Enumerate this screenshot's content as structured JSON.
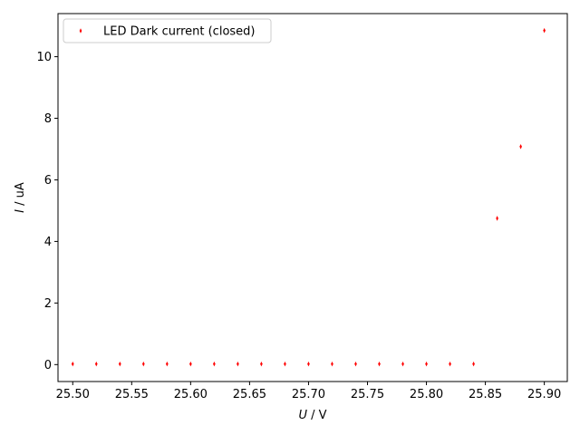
{
  "chart_data": {
    "type": "scatter",
    "series": [
      {
        "name": "LED Dark current (closed)",
        "color": "#ff0000",
        "marker": "thin-diamond",
        "x": [
          25.5,
          25.52,
          25.54,
          25.56,
          25.58,
          25.6,
          25.62,
          25.64,
          25.66,
          25.68,
          25.7,
          25.72,
          25.74,
          25.76,
          25.78,
          25.8,
          25.82,
          25.84,
          25.86,
          25.88,
          25.9
        ],
        "y": [
          0.02,
          0.02,
          0.02,
          0.02,
          0.02,
          0.02,
          0.02,
          0.02,
          0.02,
          0.02,
          0.02,
          0.02,
          0.02,
          0.02,
          0.02,
          0.02,
          0.02,
          0.02,
          4.75,
          7.08,
          10.85
        ]
      }
    ],
    "xlabel": {
      "var": "U",
      "unit": " / V"
    },
    "ylabel": {
      "var": "I",
      "unit": " / uA"
    },
    "xlim": [
      25.4875,
      25.9195
    ],
    "ylim": [
      -0.55,
      11.4
    ],
    "xticks": [
      25.5,
      25.55,
      25.6,
      25.65,
      25.7,
      25.75,
      25.8,
      25.85,
      25.9
    ],
    "xtick_labels": [
      "25.50",
      "25.55",
      "25.60",
      "25.65",
      "25.70",
      "25.75",
      "25.80",
      "25.85",
      "25.90"
    ],
    "yticks": [
      0,
      2,
      4,
      6,
      8,
      10
    ],
    "ytick_labels": [
      "0",
      "2",
      "4",
      "6",
      "8",
      "10"
    ],
    "grid": false,
    "legend_position": "upper-left"
  }
}
